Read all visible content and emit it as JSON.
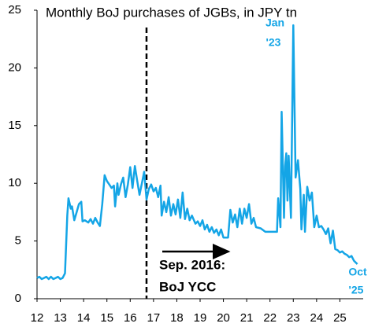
{
  "chart_data": {
    "type": "line",
    "title": "Monthly BoJ purchases of JGBs, in JPY tn",
    "x": [
      12.0,
      12.1,
      12.2,
      12.3,
      12.4,
      12.5,
      12.6,
      12.7,
      12.8,
      12.9,
      13.0,
      13.1,
      13.2,
      13.3,
      13.35,
      13.45,
      13.5,
      13.6,
      13.7,
      13.8,
      13.9,
      13.95,
      14.05,
      14.2,
      14.3,
      14.4,
      14.5,
      14.6,
      14.7,
      14.8,
      14.9,
      15.0,
      15.1,
      15.2,
      15.3,
      15.35,
      15.45,
      15.5,
      15.6,
      15.7,
      15.8,
      15.9,
      16.0,
      16.1,
      16.2,
      16.3,
      16.4,
      16.5,
      16.6,
      16.7,
      16.8,
      16.9,
      17.0,
      17.1,
      17.2,
      17.3,
      17.35,
      17.45,
      17.55,
      17.65,
      17.75,
      17.85,
      17.95,
      18.05,
      18.15,
      18.25,
      18.35,
      18.45,
      18.55,
      18.65,
      18.8,
      18.9,
      19.0,
      19.1,
      19.2,
      19.3,
      19.4,
      19.5,
      19.6,
      19.7,
      19.8,
      19.9,
      20.0,
      20.2,
      20.3,
      20.4,
      20.5,
      20.6,
      20.7,
      20.8,
      20.9,
      21.0,
      21.1,
      21.2,
      21.3,
      21.4,
      21.6,
      21.8,
      22.0,
      22.3,
      22.35,
      22.45,
      22.5,
      22.6,
      22.65,
      22.7,
      22.75,
      22.8,
      22.9,
      23.0,
      23.1,
      23.2,
      23.3,
      23.35,
      23.45,
      23.5,
      23.6,
      23.7,
      23.8,
      23.9,
      24.0,
      24.1,
      24.2,
      24.3,
      24.4,
      24.5,
      24.6,
      24.7,
      24.8,
      24.9,
      25.0,
      25.1,
      25.2,
      25.3,
      25.4,
      25.5,
      25.6,
      25.75
    ],
    "series": [
      {
        "color": "#14a5e6",
        "values": [
          1.8,
          1.9,
          1.7,
          1.8,
          1.9,
          1.7,
          1.9,
          1.7,
          1.8,
          1.9,
          1.7,
          1.8,
          2.2,
          7.2,
          8.7,
          7.8,
          8.0,
          6.8,
          7.5,
          8.2,
          8.4,
          6.7,
          6.8,
          6.6,
          6.9,
          6.5,
          7.0,
          6.6,
          6.3,
          8.2,
          10.7,
          10.2,
          9.9,
          9.6,
          9.8,
          8.0,
          10.0,
          9.0,
          9.9,
          10.5,
          8.8,
          9.9,
          11.4,
          9.6,
          11.5,
          10.2,
          9.0,
          10.0,
          11.0,
          8.6,
          9.5,
          9.9,
          9.3,
          9.6,
          8.8,
          9.8,
          7.2,
          8.4,
          7.5,
          8.8,
          7.2,
          8.2,
          7.3,
          8.6,
          7.0,
          9.2,
          6.9,
          7.8,
          6.8,
          7.2,
          6.5,
          6.7,
          6.3,
          6.8,
          6.0,
          6.4,
          5.8,
          6.2,
          5.7,
          6.0,
          5.5,
          6.0,
          5.3,
          5.3,
          7.7,
          6.6,
          7.3,
          6.2,
          7.8,
          6.5,
          7.8,
          7.0,
          8.2,
          6.5,
          7.0,
          6.2,
          6.1,
          5.8,
          5.8,
          5.8,
          8.7,
          6.2,
          16.2,
          7.0,
          11.5,
          12.6,
          8.5,
          12.4,
          7.0,
          23.7,
          10.5,
          12.0,
          9.5,
          6.0,
          9.0,
          5.8,
          9.7,
          8.5,
          9.2,
          6.2,
          7.2,
          6.2,
          6.3,
          6.0,
          5.6,
          6.1,
          4.8,
          5.9,
          4.3,
          4.2,
          4.0,
          4.1,
          3.9,
          3.8,
          3.6,
          3.7,
          3.3,
          3.0
        ]
      }
    ],
    "xlim": [
      12,
      26
    ],
    "xticks": [
      12,
      13,
      14,
      15,
      16,
      17,
      18,
      19,
      20,
      21,
      22,
      23,
      24,
      25
    ],
    "ylim": [
      0,
      25
    ],
    "yticks": [
      0,
      5,
      10,
      15,
      20,
      25
    ],
    "vline_x": 16.7,
    "annotations": [
      "Jan",
      "'23",
      "Oct",
      "'25",
      "Sep. 2016:",
      "BoJ YCC"
    ]
  }
}
